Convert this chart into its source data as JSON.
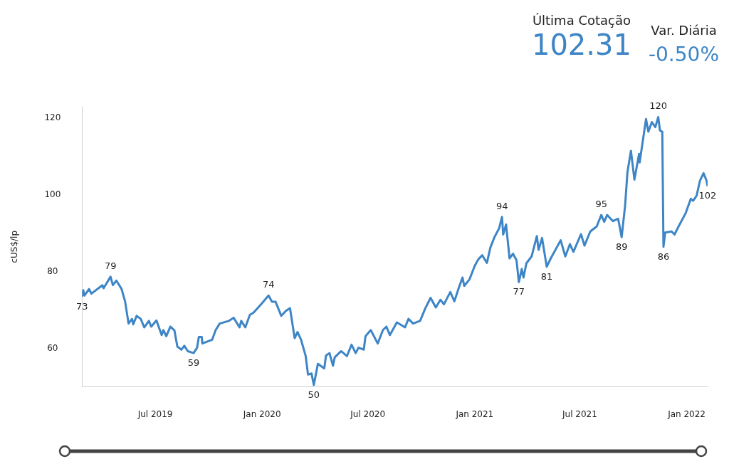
{
  "chart_data": {
    "type": "line",
    "ylabel": "cUS$/lp",
    "marker": "none",
    "grid": false,
    "legend": false,
    "line_style": "solid",
    "xlim": [
      "2019-02-25",
      "2022-02-06"
    ],
    "ylim": [
      50,
      123
    ],
    "yticks": [
      60,
      80,
      100,
      120
    ],
    "xticks": [
      {
        "value": "2019-07-01",
        "label": "Jul 2019"
      },
      {
        "value": "2020-01-01",
        "label": "Jan 2020"
      },
      {
        "value": "2020-07-01",
        "label": "Jul 2020"
      },
      {
        "value": "2021-01-01",
        "label": "Jan 2021"
      },
      {
        "value": "2021-07-01",
        "label": "Jul 2021"
      },
      {
        "value": "2022-01-01",
        "label": "Jan 2022"
      }
    ],
    "annotations": [
      "Última Cotação",
      "102.31",
      "Var. Diária",
      "-0.50%",
      {
        "text": "73",
        "x": "2019-02-25",
        "y": 73.5
      },
      {
        "text": "79",
        "x": "2019-04-15",
        "y": 78.7
      },
      {
        "text": "59",
        "x": "2019-09-05",
        "y": 58.8
      },
      {
        "text": "74",
        "x": "2020-01-12",
        "y": 73.8
      },
      {
        "text": "50",
        "x": "2020-03-30",
        "y": 50.5
      },
      {
        "text": "94",
        "x": "2021-02-17",
        "y": 94.3
      },
      {
        "text": "77",
        "x": "2021-03-18",
        "y": 77.3
      },
      {
        "text": "81",
        "x": "2021-05-05",
        "y": 81.3
      },
      {
        "text": "95",
        "x": "2021-08-07",
        "y": 94.8
      },
      {
        "text": "89",
        "x": "2021-09-11",
        "y": 89
      },
      {
        "text": "120",
        "x": "2021-11-13",
        "y": 120.3
      },
      {
        "text": "86",
        "x": "2021-11-22",
        "y": 86.5
      },
      {
        "text": "102",
        "x": "2022-02-06",
        "y": 102.3
      }
    ],
    "series": [
      {
        "color": "#3d85c6",
        "x": [
          "2019-02-25",
          "2019-02-27",
          "2019-03-01",
          "2019-03-09",
          "2019-03-13",
          "2019-04-01",
          "2019-04-03",
          "2019-04-15",
          "2019-04-19",
          "2019-04-25",
          "2019-05-04",
          "2019-05-10",
          "2019-05-16",
          "2019-05-22",
          "2019-05-24",
          "2019-05-30",
          "2019-06-06",
          "2019-06-12",
          "2019-06-20",
          "2019-06-24",
          "2019-07-03",
          "2019-07-12",
          "2019-07-15",
          "2019-07-20",
          "2019-07-27",
          "2019-08-03",
          "2019-08-08",
          "2019-08-15",
          "2019-08-20",
          "2019-08-26",
          "2019-09-05",
          "2019-09-11",
          "2019-09-14",
          "2019-09-19",
          "2019-09-20",
          "2019-10-07",
          "2019-10-13",
          "2019-10-20",
          "2019-11-05",
          "2019-11-13",
          "2019-11-23",
          "2019-11-26",
          "2019-12-03",
          "2019-12-11",
          "2019-12-17",
          "2019-12-30",
          "2020-01-12",
          "2020-01-18",
          "2020-01-24",
          "2020-02-03",
          "2020-02-11",
          "2020-02-18",
          "2020-02-26",
          "2020-03-02",
          "2020-03-08",
          "2020-03-16",
          "2020-03-20",
          "2020-03-26",
          "2020-03-30",
          "2020-04-06",
          "2020-04-17",
          "2020-04-20",
          "2020-04-26",
          "2020-05-02",
          "2020-05-05",
          "2020-05-16",
          "2020-05-26",
          "2020-06-03",
          "2020-06-10",
          "2020-06-15",
          "2020-06-24",
          "2020-06-27",
          "2020-07-06",
          "2020-07-18",
          "2020-07-27",
          "2020-08-02",
          "2020-08-08",
          "2020-08-20",
          "2020-09-03",
          "2020-09-09",
          "2020-09-17",
          "2020-09-29",
          "2020-10-08",
          "2020-10-17",
          "2020-10-26",
          "2020-11-03",
          "2020-11-09",
          "2020-11-20",
          "2020-11-27",
          "2020-12-05",
          "2020-12-11",
          "2020-12-14",
          "2020-12-23",
          "2021-01-01",
          "2021-01-07",
          "2021-01-14",
          "2021-01-22",
          "2021-01-28",
          "2021-02-04",
          "2021-02-12",
          "2021-02-17",
          "2021-02-19",
          "2021-02-24",
          "2021-03-02",
          "2021-03-08",
          "2021-03-14",
          "2021-03-18",
          "2021-03-23",
          "2021-03-26",
          "2021-03-31",
          "2021-04-09",
          "2021-04-18",
          "2021-04-21",
          "2021-04-27",
          "2021-05-05",
          "2021-05-12",
          "2021-05-29",
          "2021-06-06",
          "2021-06-14",
          "2021-06-20",
          "2021-07-03",
          "2021-07-09",
          "2021-07-19",
          "2021-07-30",
          "2021-08-07",
          "2021-08-12",
          "2021-08-17",
          "2021-08-27",
          "2021-09-05",
          "2021-09-11",
          "2021-09-17",
          "2021-09-21",
          "2021-09-27",
          "2021-10-03",
          "2021-10-11",
          "2021-10-12",
          "2021-10-23",
          "2021-10-27",
          "2021-11-02",
          "2021-11-08",
          "2021-11-13",
          "2021-11-16",
          "2021-11-20",
          "2021-11-22",
          "2021-11-25",
          "2021-12-06",
          "2021-12-11",
          "2021-12-18",
          "2021-12-30",
          "2022-01-08",
          "2022-01-12",
          "2022-01-18",
          "2022-01-24",
          "2022-01-30",
          "2022-02-04",
          "2022-02-06"
        ],
        "values": [
          73.5,
          75.2,
          73.8,
          75.5,
          74.3,
          76.5,
          75.7,
          78.7,
          76.5,
          77.7,
          75.5,
          72.3,
          66.5,
          67.7,
          66.3,
          68.5,
          67.7,
          65.5,
          67.2,
          65.7,
          67.3,
          63.5,
          64.8,
          63.2,
          65.7,
          64.7,
          60.5,
          59.7,
          60.7,
          59.3,
          58.8,
          60.2,
          63,
          63,
          61.3,
          62.3,
          64.8,
          66.5,
          67.2,
          68,
          65.5,
          67.2,
          65.5,
          68.8,
          69.3,
          71.5,
          73.8,
          72.2,
          72.2,
          68.5,
          69.8,
          70.5,
          62.7,
          64.3,
          62.3,
          58,
          53.2,
          53.5,
          50.5,
          56,
          54.8,
          58.2,
          58.8,
          55.5,
          57.7,
          59.3,
          58,
          61,
          58.8,
          60.2,
          59.7,
          63.2,
          64.8,
          61.3,
          64.8,
          65.7,
          63.5,
          66.8,
          65.5,
          67.7,
          66.5,
          67.2,
          70.5,
          73.2,
          70.7,
          72.7,
          71.5,
          74.7,
          72.3,
          76,
          78.5,
          76.3,
          78,
          81.5,
          83.2,
          84.3,
          82.3,
          86.3,
          89,
          91.3,
          94.3,
          89.7,
          92.3,
          83.5,
          84.7,
          83,
          77.3,
          80.7,
          78.5,
          82.2,
          84,
          89.3,
          85.7,
          88.8,
          81.3,
          83.5,
          88.2,
          84,
          87.2,
          85.2,
          89.8,
          86.8,
          90.5,
          91.8,
          94.8,
          93,
          94.8,
          93.2,
          93.8,
          89,
          97.3,
          106,
          111.5,
          104,
          110.7,
          108.5,
          119.8,
          116.5,
          119,
          117.7,
          120.3,
          116.8,
          116.5,
          86.5,
          90.2,
          90.5,
          89.7,
          91.8,
          95.2,
          99,
          98.5,
          99.8,
          103.8,
          105.7,
          103.8,
          102.3
        ]
      }
    ]
  }
}
